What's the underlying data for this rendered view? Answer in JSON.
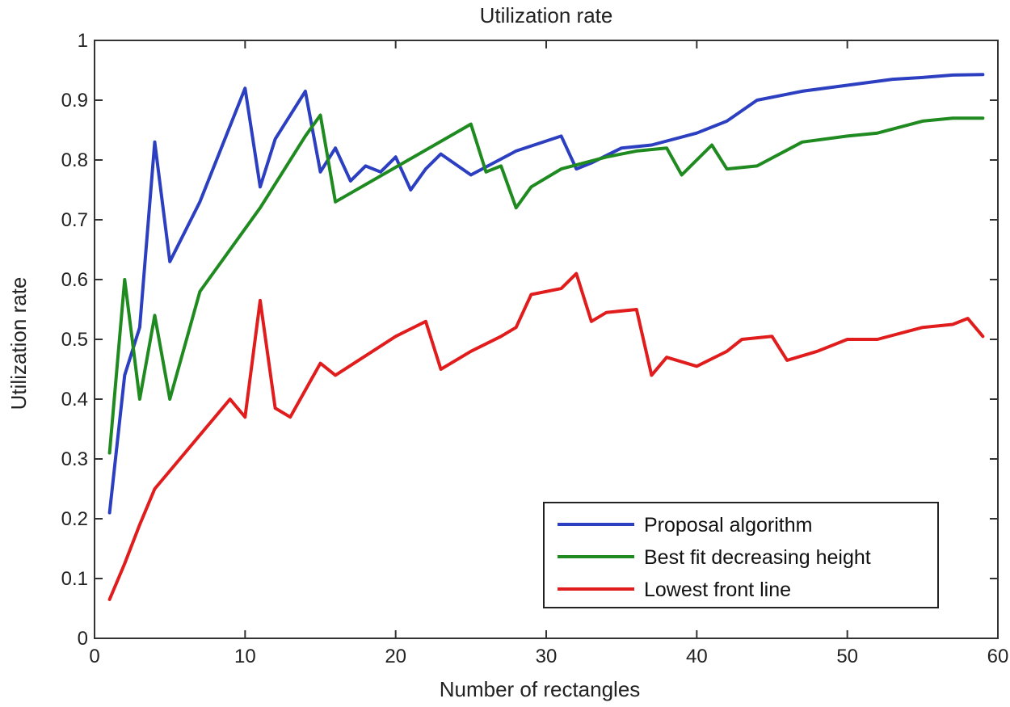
{
  "chart_data": {
    "type": "line",
    "title": "Utilization rate",
    "xlabel": "Number of rectangles",
    "ylabel": "Utilization rate",
    "xlim": [
      0,
      60
    ],
    "ylim": [
      0,
      1
    ],
    "xticks": [
      0,
      10,
      20,
      30,
      40,
      50,
      60
    ],
    "yticks": [
      0,
      0.1,
      0.2,
      0.3,
      0.4,
      0.5,
      0.6,
      0.7,
      0.8,
      0.9,
      1
    ],
    "xtick_labels": [
      "0",
      "10",
      "20",
      "30",
      "40",
      "50",
      "60"
    ],
    "ytick_labels": [
      "0",
      "0.1",
      "0.2",
      "0.3",
      "0.4",
      "0.5",
      "0.6",
      "0.7",
      "0.8",
      "0.9",
      "1"
    ],
    "grid": false,
    "legend_position": "bottom-right",
    "series": [
      {
        "name": "Proposal algorithm",
        "color": "#2b3fc0",
        "x": [
          1,
          2,
          3,
          4,
          5,
          7,
          10,
          11,
          12,
          14,
          15,
          16,
          17,
          18,
          19,
          20,
          21,
          22,
          23,
          25,
          28,
          31,
          32,
          33,
          35,
          37,
          40,
          42,
          44,
          47,
          50,
          53,
          55,
          57,
          59
        ],
        "y": [
          0.21,
          0.44,
          0.52,
          0.83,
          0.63,
          0.73,
          0.92,
          0.755,
          0.835,
          0.915,
          0.78,
          0.82,
          0.765,
          0.79,
          0.78,
          0.805,
          0.75,
          0.785,
          0.81,
          0.775,
          0.815,
          0.84,
          0.785,
          0.795,
          0.82,
          0.825,
          0.845,
          0.865,
          0.9,
          0.915,
          0.925,
          0.935,
          0.938,
          0.942,
          0.943
        ]
      },
      {
        "name": "Best fit decreasing height",
        "color": "#1f8a1f",
        "x": [
          1,
          2,
          3,
          4,
          5,
          7,
          11,
          14,
          15,
          16,
          25,
          26,
          27,
          28,
          29,
          31,
          34,
          36,
          38,
          39,
          40,
          41,
          42,
          44,
          47,
          50,
          52,
          55,
          57,
          59
        ],
        "y": [
          0.31,
          0.6,
          0.4,
          0.54,
          0.4,
          0.58,
          0.72,
          0.84,
          0.875,
          0.73,
          0.86,
          0.78,
          0.79,
          0.72,
          0.755,
          0.785,
          0.805,
          0.815,
          0.82,
          0.775,
          0.8,
          0.825,
          0.785,
          0.79,
          0.83,
          0.84,
          0.845,
          0.865,
          0.87,
          0.87
        ]
      },
      {
        "name": "Lowest front line",
        "color": "#e01c1c",
        "x": [
          1,
          2,
          3,
          4,
          6,
          9,
          10,
          11,
          12,
          13,
          15,
          16,
          20,
          22,
          23,
          25,
          27,
          28,
          29,
          31,
          32,
          33,
          34,
          36,
          37,
          38,
          40,
          42,
          43,
          45,
          46,
          48,
          50,
          52,
          55,
          57,
          58,
          59
        ],
        "y": [
          0.065,
          0.125,
          0.19,
          0.25,
          0.31,
          0.4,
          0.37,
          0.565,
          0.385,
          0.37,
          0.46,
          0.44,
          0.505,
          0.53,
          0.45,
          0.48,
          0.505,
          0.52,
          0.575,
          0.585,
          0.61,
          0.53,
          0.545,
          0.55,
          0.44,
          0.47,
          0.455,
          0.48,
          0.5,
          0.505,
          0.465,
          0.48,
          0.5,
          0.5,
          0.52,
          0.525,
          0.535,
          0.505
        ]
      }
    ]
  }
}
